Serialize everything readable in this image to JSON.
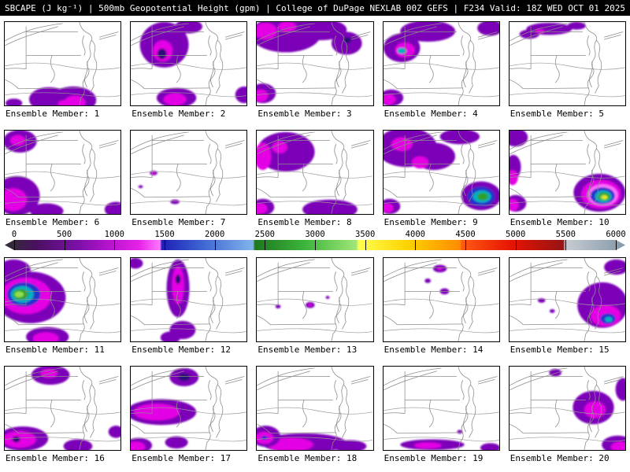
{
  "header": {
    "title": "SBCAPE (J kg⁻¹) | 500mb Geopotential Height (gpm) | College of DuPage NEXLAB 00Z GEFS | F234 Valid: 18Z WED OCT 01 2025"
  },
  "colorbar": {
    "min": 0,
    "max": 6000,
    "ticks": [
      0,
      500,
      1000,
      1500,
      2000,
      2500,
      3000,
      3500,
      4000,
      4500,
      5000,
      5500,
      6000
    ],
    "stops": [
      {
        "v": 0,
        "c": "#303030"
      },
      {
        "v": 300,
        "c": "#4a1060"
      },
      {
        "v": 700,
        "c": "#7a10a8"
      },
      {
        "v": 1000,
        "c": "#b414cc"
      },
      {
        "v": 1300,
        "c": "#e622e6"
      },
      {
        "v": 1500,
        "c": "#ff78ff"
      },
      {
        "v": 1520,
        "c": "#1e1eb4"
      },
      {
        "v": 1900,
        "c": "#3c64d2"
      },
      {
        "v": 2400,
        "c": "#82b4ea"
      },
      {
        "v": 2420,
        "c": "#1e781e"
      },
      {
        "v": 2900,
        "c": "#3cb43c"
      },
      {
        "v": 3400,
        "c": "#a0e678"
      },
      {
        "v": 3420,
        "c": "#ffff50"
      },
      {
        "v": 3900,
        "c": "#ffd200"
      },
      {
        "v": 4400,
        "c": "#ff8c00"
      },
      {
        "v": 4420,
        "c": "#ff5a14"
      },
      {
        "v": 4900,
        "c": "#e61400"
      },
      {
        "v": 5400,
        "c": "#961414"
      },
      {
        "v": 5420,
        "c": "#c8ccd2"
      },
      {
        "v": 6000,
        "c": "#8298a8"
      }
    ]
  },
  "palette": {
    "P": "#7c00b8",
    "M": "#e400e4",
    "K": "#ff70ff",
    "B": "#2832cc",
    "C": "#00b0c0",
    "G": "#2da02d",
    "LG": "#90dc50",
    "Y": "#ffe600",
    "D": "#2a0e78"
  },
  "panels": [
    {
      "label": "Ensemble Member: 1",
      "blobs": [
        [
          58,
          102,
          26,
          16,
          "P"
        ],
        [
          90,
          103,
          30,
          18,
          "P"
        ],
        [
          92,
          106,
          14,
          9,
          "M"
        ],
        [
          78,
          108,
          8,
          5,
          "M"
        ],
        [
          12,
          107,
          11,
          6,
          "P"
        ]
      ]
    },
    {
      "label": "Ensemble Member: 2",
      "blobs": [
        [
          44,
          30,
          32,
          30,
          "P"
        ],
        [
          76,
          6,
          18,
          9,
          "P"
        ],
        [
          42,
          38,
          13,
          14,
          "M"
        ],
        [
          41,
          42,
          6,
          7,
          "D"
        ],
        [
          60,
          100,
          26,
          13,
          "P"
        ],
        [
          58,
          102,
          15,
          8,
          "M"
        ],
        [
          149,
          96,
          12,
          11,
          "P"
        ]
      ]
    },
    {
      "label": "Ensemble Member: 3",
      "blobs": [
        [
          38,
          16,
          46,
          24,
          "P"
        ],
        [
          84,
          10,
          34,
          14,
          "P"
        ],
        [
          118,
          28,
          20,
          15,
          "P"
        ],
        [
          12,
          12,
          15,
          11,
          "M"
        ],
        [
          40,
          6,
          12,
          7,
          "M"
        ],
        [
          119,
          24,
          5,
          4,
          "D"
        ],
        [
          8,
          94,
          17,
          13,
          "P"
        ],
        [
          5,
          97,
          10,
          8,
          "M"
        ]
      ]
    },
    {
      "label": "Ensemble Member: 4",
      "blobs": [
        [
          58,
          12,
          36,
          14,
          "P"
        ],
        [
          24,
          34,
          24,
          19,
          "P"
        ],
        [
          28,
          37,
          13,
          10,
          "M"
        ],
        [
          24,
          38,
          6,
          4,
          "C"
        ],
        [
          140,
          8,
          17,
          10,
          "P"
        ],
        [
          10,
          100,
          16,
          11,
          "P"
        ],
        [
          7,
          102,
          9,
          7,
          "M"
        ]
      ]
    },
    {
      "label": "Ensemble Member: 5",
      "blobs": [
        [
          52,
          9,
          30,
          8,
          "P"
        ],
        [
          26,
          16,
          13,
          6,
          "P"
        ],
        [
          88,
          5,
          12,
          5,
          "P"
        ],
        [
          40,
          12,
          6,
          3,
          "M"
        ]
      ]
    },
    {
      "label": "Ensemble Member: 6",
      "blobs": [
        [
          20,
          14,
          22,
          15,
          "P"
        ],
        [
          17,
          13,
          10,
          7,
          "M"
        ],
        [
          16,
          86,
          30,
          26,
          "P"
        ],
        [
          11,
          91,
          18,
          15,
          "M"
        ],
        [
          55,
          106,
          22,
          10,
          "P"
        ],
        [
          146,
          104,
          15,
          10,
          "P"
        ]
      ]
    },
    {
      "label": "Ensemble Member: 7",
      "blobs": [
        [
          30,
          56,
          5,
          3,
          "P"
        ],
        [
          13,
          74,
          3,
          2,
          "P"
        ],
        [
          58,
          94,
          6,
          3,
          "P"
        ],
        [
          30,
          56,
          2,
          1.5,
          "M"
        ]
      ]
    },
    {
      "label": "Ensemble Member: 8",
      "blobs": [
        [
          38,
          28,
          38,
          26,
          "P"
        ],
        [
          8,
          34,
          11,
          18,
          "M"
        ],
        [
          30,
          22,
          10,
          8,
          "M"
        ],
        [
          96,
          104,
          36,
          13,
          "P"
        ],
        [
          8,
          101,
          15,
          11,
          "P"
        ],
        [
          5,
          103,
          9,
          7,
          "M"
        ]
      ]
    },
    {
      "label": "Ensemble Member: 9",
      "blobs": [
        [
          30,
          22,
          40,
          26,
          "P"
        ],
        [
          66,
          34,
          28,
          18,
          "P"
        ],
        [
          100,
          8,
          26,
          10,
          "P"
        ],
        [
          24,
          18,
          14,
          9,
          "M"
        ],
        [
          48,
          42,
          11,
          8,
          "M"
        ],
        [
          128,
          86,
          26,
          19,
          "P"
        ],
        [
          128,
          87,
          18,
          13,
          "B"
        ],
        [
          129,
          87,
          12,
          8,
          "C"
        ],
        [
          130,
          87,
          7,
          5,
          "G"
        ],
        [
          8,
          100,
          14,
          10,
          "P"
        ],
        [
          5,
          102,
          8,
          6,
          "M"
        ]
      ]
    },
    {
      "label": "Ensemble Member: 10",
      "blobs": [
        [
          8,
          9,
          16,
          12,
          "P"
        ],
        [
          5,
          48,
          10,
          16,
          "P"
        ],
        [
          4,
          62,
          7,
          10,
          "M"
        ],
        [
          8,
          96,
          14,
          11,
          "P"
        ],
        [
          4,
          98,
          8,
          8,
          "M"
        ],
        [
          118,
          82,
          34,
          25,
          "P"
        ],
        [
          120,
          84,
          26,
          19,
          "M"
        ],
        [
          122,
          85,
          20,
          14,
          "K"
        ],
        [
          122,
          86,
          16,
          11,
          "B"
        ],
        [
          123,
          87,
          11,
          8,
          "C"
        ],
        [
          124,
          87,
          8,
          5.5,
          "G"
        ],
        [
          124,
          88,
          5,
          3.5,
          "LG"
        ],
        [
          125,
          88,
          3,
          2,
          "Y"
        ]
      ]
    },
    {
      "label": "Ensemble Member: 11",
      "blobs": [
        [
          34,
          52,
          46,
          34,
          "P"
        ],
        [
          12,
          16,
          22,
          14,
          "P"
        ],
        [
          28,
          50,
          33,
          24,
          "M"
        ],
        [
          25,
          48,
          22,
          16,
          "B"
        ],
        [
          23,
          48,
          15,
          11,
          "C"
        ],
        [
          21,
          48,
          10,
          7,
          "G"
        ],
        [
          19,
          48,
          6,
          4,
          "LG"
        ],
        [
          56,
          104,
          28,
          13,
          "P"
        ],
        [
          54,
          106,
          17,
          8,
          "M"
        ]
      ]
    },
    {
      "label": "Ensemble Member: 12",
      "blobs": [
        [
          62,
          40,
          15,
          38,
          "P"
        ],
        [
          62,
          36,
          8,
          25,
          "M"
        ],
        [
          62,
          28,
          3.5,
          6,
          "D"
        ],
        [
          68,
          95,
          17,
          12,
          "P"
        ],
        [
          52,
          105,
          13,
          8,
          "P"
        ],
        [
          6,
          7,
          10,
          7,
          "P"
        ]
      ]
    },
    {
      "label": "Ensemble Member: 13",
      "blobs": [
        [
          70,
          62,
          6,
          4,
          "P"
        ],
        [
          28,
          64,
          3.5,
          2.5,
          "P"
        ],
        [
          70,
          62,
          2.5,
          1.5,
          "M"
        ],
        [
          93,
          52,
          2.5,
          2,
          "P"
        ]
      ]
    },
    {
      "label": "Ensemble Member: 14",
      "blobs": [
        [
          74,
          14,
          9,
          5,
          "P"
        ],
        [
          80,
          44,
          6,
          4,
          "P"
        ],
        [
          58,
          30,
          4,
          3,
          "P"
        ],
        [
          74,
          14,
          3,
          2,
          "M"
        ]
      ]
    },
    {
      "label": "Ensemble Member: 15",
      "blobs": [
        [
          122,
          62,
          33,
          30,
          "P"
        ],
        [
          140,
          12,
          16,
          10,
          "P"
        ],
        [
          126,
          76,
          20,
          14,
          "M"
        ],
        [
          129,
          80,
          10,
          7,
          "B"
        ],
        [
          130,
          81,
          5,
          3.5,
          "C"
        ],
        [
          42,
          56,
          5,
          3,
          "P"
        ],
        [
          56,
          70,
          3.5,
          2.5,
          "P"
        ]
      ]
    },
    {
      "label": "Ensemble Member: 16",
      "blobs": [
        [
          60,
          11,
          25,
          13,
          "P"
        ],
        [
          58,
          9,
          11,
          6,
          "M"
        ],
        [
          24,
          95,
          33,
          16,
          "P"
        ],
        [
          19,
          96,
          22,
          11,
          "M"
        ],
        [
          15,
          96,
          5,
          4,
          "D"
        ],
        [
          96,
          105,
          19,
          9,
          "P"
        ],
        [
          146,
          86,
          10,
          8,
          "P"
        ]
      ]
    },
    {
      "label": "Ensemble Member: 17",
      "blobs": [
        [
          40,
          60,
          46,
          17,
          "P"
        ],
        [
          34,
          60,
          30,
          11,
          "M"
        ],
        [
          70,
          14,
          19,
          12,
          "P"
        ],
        [
          70,
          14,
          8,
          5,
          "D"
        ],
        [
          10,
          104,
          18,
          10,
          "P"
        ],
        [
          7,
          106,
          12,
          7,
          "M"
        ],
        [
          60,
          100,
          15,
          8,
          "P"
        ]
      ]
    },
    {
      "label": "Ensemble Member: 18",
      "blobs": [
        [
          62,
          101,
          56,
          13,
          "P"
        ],
        [
          44,
          103,
          30,
          9,
          "M"
        ],
        [
          12,
          92,
          19,
          14,
          "P"
        ],
        [
          10,
          94,
          12,
          8,
          "M"
        ],
        [
          10,
          94,
          4,
          3,
          "B"
        ],
        [
          122,
          105,
          22,
          8,
          "P"
        ]
      ]
    },
    {
      "label": "Ensemble Member: 19",
      "blobs": [
        [
          64,
          103,
          42,
          7,
          "P"
        ],
        [
          58,
          104,
          18,
          4,
          "M"
        ],
        [
          140,
          107,
          13,
          6,
          "P"
        ],
        [
          100,
          86,
          3.5,
          2.5,
          "P"
        ]
      ]
    },
    {
      "label": "Ensemble Member: 20",
      "blobs": [
        [
          110,
          54,
          27,
          22,
          "P"
        ],
        [
          112,
          57,
          14,
          11,
          "M"
        ],
        [
          149,
          30,
          10,
          15,
          "P"
        ],
        [
          142,
          103,
          21,
          12,
          "P"
        ],
        [
          146,
          106,
          13,
          7,
          "M"
        ],
        [
          60,
          8,
          8,
          5,
          "P"
        ]
      ]
    }
  ],
  "chart_data": {
    "type": "map-grid",
    "variable": "SBCAPE (J kg⁻¹)",
    "overlay": "500mb Geopotential Height (gpm)",
    "source": "College of DuPage NEXLAB 00Z GEFS",
    "forecast_hour": "F234",
    "valid": "18Z WED OCT 01 2025",
    "members": [
      1,
      2,
      3,
      4,
      5,
      6,
      7,
      8,
      9,
      10,
      11,
      12,
      13,
      14,
      15,
      16,
      17,
      18,
      19,
      20
    ],
    "scale_values": [
      0,
      500,
      1000,
      1500,
      2000,
      2500,
      3000,
      3500,
      4000,
      4500,
      5000,
      5500,
      6000
    ]
  }
}
